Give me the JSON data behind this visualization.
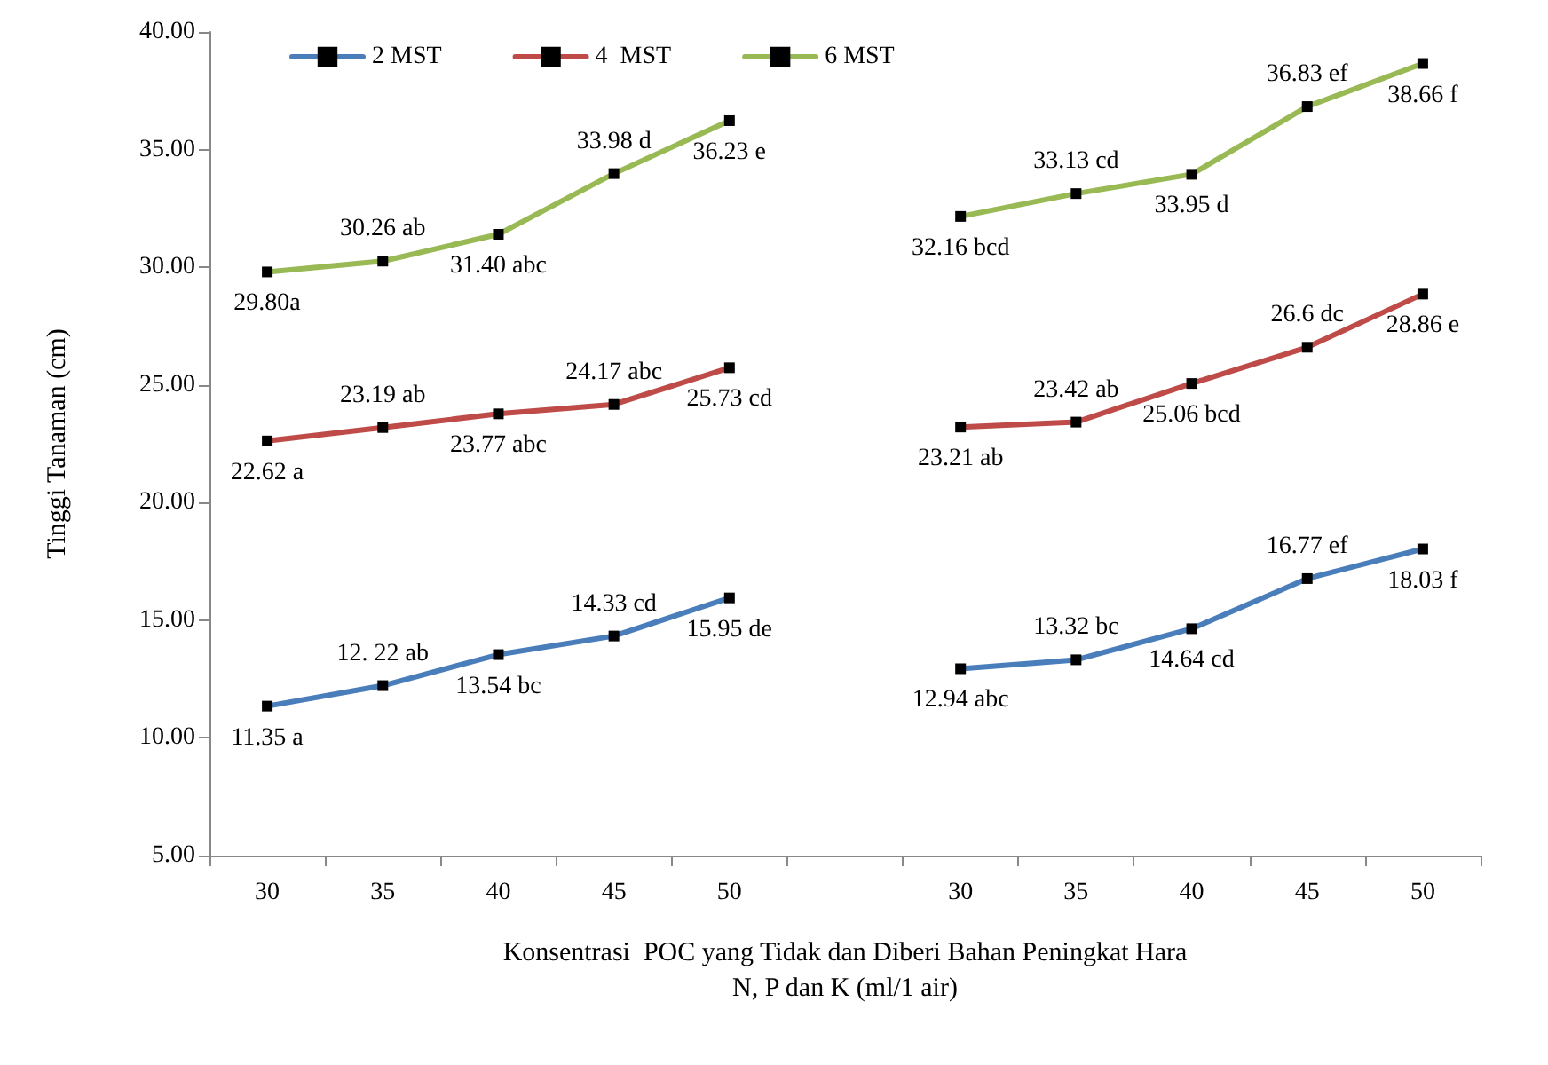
{
  "chart_data": {
    "type": "line",
    "ylabel": "Tinggi Tanaman (cm)",
    "xlabel": "Konsentrasi  POC yang Tidak dan Diberi Bahan Peningkat Hara\nN, P dan K (ml/1 air)",
    "categories": [
      "30",
      "35",
      "40",
      "45",
      "50",
      null,
      "30",
      "35",
      "40",
      "45",
      "50"
    ],
    "series": [
      {
        "name": "2 MST",
        "color": "#4a7ebb",
        "values": [
          11.35,
          12.22,
          13.54,
          14.33,
          15.95,
          null,
          12.94,
          13.32,
          14.64,
          16.77,
          18.03
        ],
        "value_labels": [
          "11.35 a",
          "12. 22 ab",
          "13.54 bc",
          "14.33 cd",
          "15.95 de",
          null,
          "12.94 abc",
          "13.32 bc",
          "14.64 cd",
          "16.77 ef",
          "18.03 f"
        ]
      },
      {
        "name": "4  MST",
        "color": "#be4b48",
        "values": [
          22.62,
          23.19,
          23.77,
          24.17,
          25.73,
          null,
          23.21,
          23.42,
          25.06,
          26.6,
          28.86
        ],
        "value_labels": [
          "22.62 a",
          "23.19 ab",
          "23.77 abc",
          "24.17 abc",
          "25.73 cd",
          null,
          "23.21 ab",
          "23.42 ab",
          "25.06 bcd",
          "26.6 dc",
          "28.86 e"
        ]
      },
      {
        "name": "6 MST",
        "color": "#98b954",
        "values": [
          29.8,
          30.26,
          31.4,
          33.98,
          36.23,
          null,
          32.16,
          33.13,
          33.95,
          36.83,
          38.66
        ],
        "value_labels": [
          "29.80a",
          "30.26 ab",
          "31.40 abc",
          "33.98 d",
          "36.23 e",
          null,
          "32.16 bcd",
          "33.13 cd",
          "33.95 d",
          "36.83 ef",
          "38.66 f"
        ]
      }
    ],
    "ylim": [
      5,
      40
    ],
    "yticks": [
      {
        "value": 5,
        "label": "5.00"
      },
      {
        "value": 10,
        "label": "10.00"
      },
      {
        "value": 15,
        "label": "15.00"
      },
      {
        "value": 20,
        "label": "20.00"
      },
      {
        "value": 25,
        "label": "25.00"
      },
      {
        "value": 30,
        "label": "30.00"
      },
      {
        "value": 35,
        "label": "35.00"
      },
      {
        "value": 40,
        "label": "40.00"
      }
    ],
    "grid": false,
    "legend": "top left",
    "marker": "square",
    "line_style": "solid"
  }
}
